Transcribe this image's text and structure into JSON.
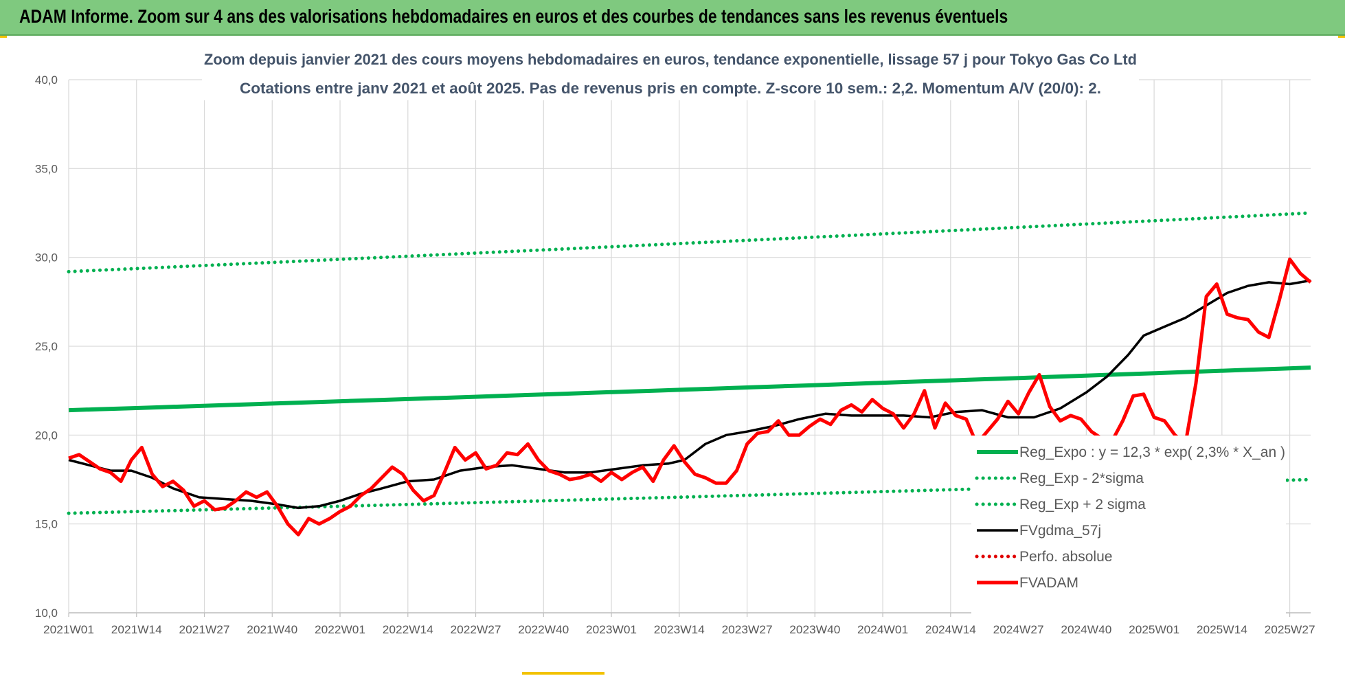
{
  "banner": {
    "title": "ADAM Informe. Zoom sur 4 ans des valorisations hebdomadaires en euros et des courbes de tendances sans les revenus éventuels"
  },
  "chart_data": {
    "type": "line",
    "title_line1": "Zoom depuis janvier 2021 des cours moyens hebdomadaires en euros, tendance exponentielle, lissage 57 j pour Tokyo Gas Co Ltd",
    "title_line2": "Cotations entre janv 2021 et août 2025.  Pas de revenus pris en compte.  Z-score 10 sem.: 2,2.  Momentum A/V (20/0): 2.",
    "ylim": [
      10,
      40
    ],
    "y_ticks": [
      "10,0",
      "15,0",
      "20,0",
      "25,0",
      "30,0",
      "35,0",
      "40,0"
    ],
    "x_ticks": [
      "2021W01",
      "2021W14",
      "2021W27",
      "2021W40",
      "2022W01",
      "2022W14",
      "2022W27",
      "2022W40",
      "2023W01",
      "2023W14",
      "2023W27",
      "2023W40",
      "2024W01",
      "2024W14",
      "2024W27",
      "2024W40",
      "2025W01",
      "2025W14",
      "2025W27"
    ],
    "x_tick_weeks": [
      0,
      13,
      26,
      39,
      52,
      65,
      78,
      91,
      104,
      117,
      130,
      143,
      156,
      169,
      182,
      195,
      208,
      221,
      234
    ],
    "x_range_weeks": [
      0,
      238
    ],
    "grid": true,
    "legend_position": "lower-right",
    "series": [
      {
        "name": "Reg_Expo : y = 12,3 * exp( 2,3% *  X_an )",
        "style": "solid",
        "color": "#00b050",
        "x": [
          0,
          238
        ],
        "y": [
          21.4,
          23.8
        ]
      },
      {
        "name": "Reg_Exp - 2*sigma",
        "style": "dotted",
        "color": "#00b050",
        "x": [
          0,
          238
        ],
        "y": [
          15.6,
          17.5
        ]
      },
      {
        "name": "Reg_Exp + 2 sigma",
        "style": "dotted",
        "color": "#00b050",
        "x": [
          0,
          238
        ],
        "y": [
          29.2,
          32.5
        ]
      },
      {
        "name": "FVgdma_57j",
        "style": "solid",
        "color": "#000000",
        "x": [
          0,
          8,
          12,
          16,
          20,
          25,
          30,
          35,
          40,
          44,
          48,
          52,
          56,
          60,
          65,
          70,
          75,
          80,
          85,
          90,
          95,
          100,
          105,
          110,
          115,
          118,
          122,
          126,
          130,
          135,
          140,
          145,
          150,
          155,
          160,
          165,
          170,
          175,
          180,
          185,
          190,
          195,
          199,
          203,
          206,
          210,
          214,
          218,
          222,
          226,
          230,
          234,
          238
        ],
        "y": [
          18.6,
          18.0,
          18.0,
          17.6,
          17.0,
          16.5,
          16.4,
          16.3,
          16.1,
          15.9,
          16.0,
          16.3,
          16.7,
          17.0,
          17.4,
          17.5,
          18.0,
          18.2,
          18.3,
          18.1,
          17.9,
          17.9,
          18.1,
          18.3,
          18.4,
          18.6,
          19.5,
          20.0,
          20.2,
          20.5,
          20.9,
          21.2,
          21.1,
          21.1,
          21.1,
          21.0,
          21.3,
          21.4,
          21.0,
          21.0,
          21.5,
          22.4,
          23.3,
          24.5,
          25.6,
          26.1,
          26.6,
          27.3,
          28.0,
          28.4,
          28.6,
          28.5,
          28.7
        ]
      },
      {
        "name": "Perfo. absolue",
        "style": "dotted",
        "color": "#e00000",
        "x": [],
        "y": []
      },
      {
        "name": "FVADAM",
        "style": "solid",
        "color": "#ff0000",
        "x": [
          0,
          2,
          4,
          6,
          8,
          10,
          12,
          14,
          16,
          18,
          20,
          22,
          24,
          26,
          28,
          30,
          32,
          34,
          36,
          38,
          40,
          42,
          44,
          46,
          48,
          50,
          52,
          54,
          56,
          58,
          60,
          62,
          64,
          66,
          68,
          70,
          72,
          74,
          76,
          78,
          80,
          82,
          84,
          86,
          88,
          90,
          92,
          94,
          96,
          98,
          100,
          102,
          104,
          106,
          108,
          110,
          112,
          114,
          116,
          118,
          120,
          122,
          124,
          126,
          128,
          130,
          132,
          134,
          136,
          138,
          140,
          142,
          144,
          146,
          148,
          150,
          152,
          154,
          156,
          158,
          160,
          162,
          164,
          166,
          168,
          170,
          172,
          174,
          176,
          178,
          180,
          182,
          184,
          186,
          188,
          190,
          192,
          194,
          196,
          198,
          200,
          202,
          204,
          206,
          208,
          210,
          212,
          214,
          216,
          218,
          220,
          222,
          224,
          226,
          228,
          230,
          232,
          234,
          236,
          238
        ],
        "y": [
          18.7,
          18.9,
          18.5,
          18.1,
          17.9,
          17.4,
          18.6,
          19.3,
          17.8,
          17.1,
          17.4,
          16.9,
          16.0,
          16.3,
          15.8,
          15.9,
          16.3,
          16.8,
          16.5,
          16.8,
          16.0,
          15.0,
          14.4,
          15.3,
          15.0,
          15.3,
          15.7,
          16.0,
          16.6,
          17.0,
          17.6,
          18.2,
          17.8,
          16.9,
          16.3,
          16.6,
          17.9,
          19.3,
          18.6,
          19.0,
          18.1,
          18.3,
          19.0,
          18.9,
          19.5,
          18.6,
          18.0,
          17.8,
          17.5,
          17.6,
          17.8,
          17.4,
          17.9,
          17.5,
          17.9,
          18.2,
          17.4,
          18.6,
          19.4,
          18.5,
          17.8,
          17.6,
          17.3,
          17.3,
          18.0,
          19.5,
          20.1,
          20.2,
          20.8,
          20.0,
          20.0,
          20.5,
          20.9,
          20.6,
          21.4,
          21.7,
          21.3,
          22.0,
          21.5,
          21.2,
          20.4,
          21.2,
          22.5,
          20.4,
          21.8,
          21.1,
          20.9,
          19.5,
          20.2,
          20.9,
          21.9,
          21.2,
          22.4,
          23.4,
          21.6,
          20.8,
          21.1,
          20.9,
          20.2,
          19.8,
          19.7,
          20.8,
          22.2,
          22.3,
          21.0,
          20.8,
          20.0,
          19.5,
          22.9,
          27.8,
          28.5,
          26.8,
          26.6,
          26.5,
          25.8,
          25.5,
          27.6,
          29.9,
          29.1,
          28.6
        ]
      }
    ]
  }
}
